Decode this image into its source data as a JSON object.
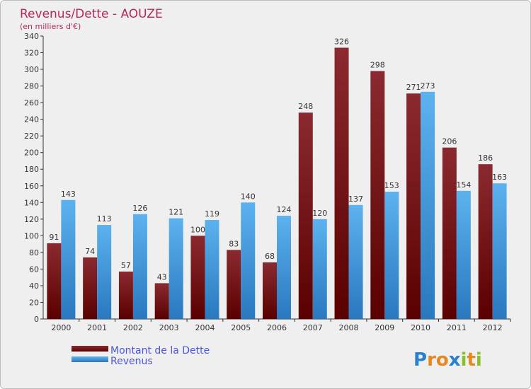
{
  "chart_data": {
    "type": "bar",
    "title": "Revenus/Dette - AOUZE",
    "subtitle": "(en milliers d'€)",
    "categories": [
      "2000",
      "2001",
      "2002",
      "2003",
      "2004",
      "2005",
      "2006",
      "2007",
      "2008",
      "2009",
      "2010",
      "2011",
      "2012"
    ],
    "series": [
      {
        "name": "Montant de la Dette",
        "color": "#6e0f14",
        "values": [
          91,
          74,
          57,
          43,
          100,
          83,
          68,
          248,
          326,
          298,
          271,
          206,
          186
        ]
      },
      {
        "name": "Revenus",
        "color": "#3a95dc",
        "values": [
          143,
          113,
          126,
          121,
          119,
          140,
          124,
          120,
          137,
          153,
          273,
          154,
          163
        ]
      }
    ],
    "ylim": [
      0,
      340
    ],
    "ytick_step": 20,
    "grid": false,
    "legend_position": "bottom-left"
  },
  "logo": {
    "letters": [
      "P",
      "r",
      "o",
      "x",
      "i",
      "t",
      "i"
    ],
    "colors": [
      "#2a7fd0",
      "#e8871e",
      "#e8871e",
      "#2a7fd0",
      "#8bbf2a",
      "#e8871e",
      "#8bbf2a"
    ]
  }
}
